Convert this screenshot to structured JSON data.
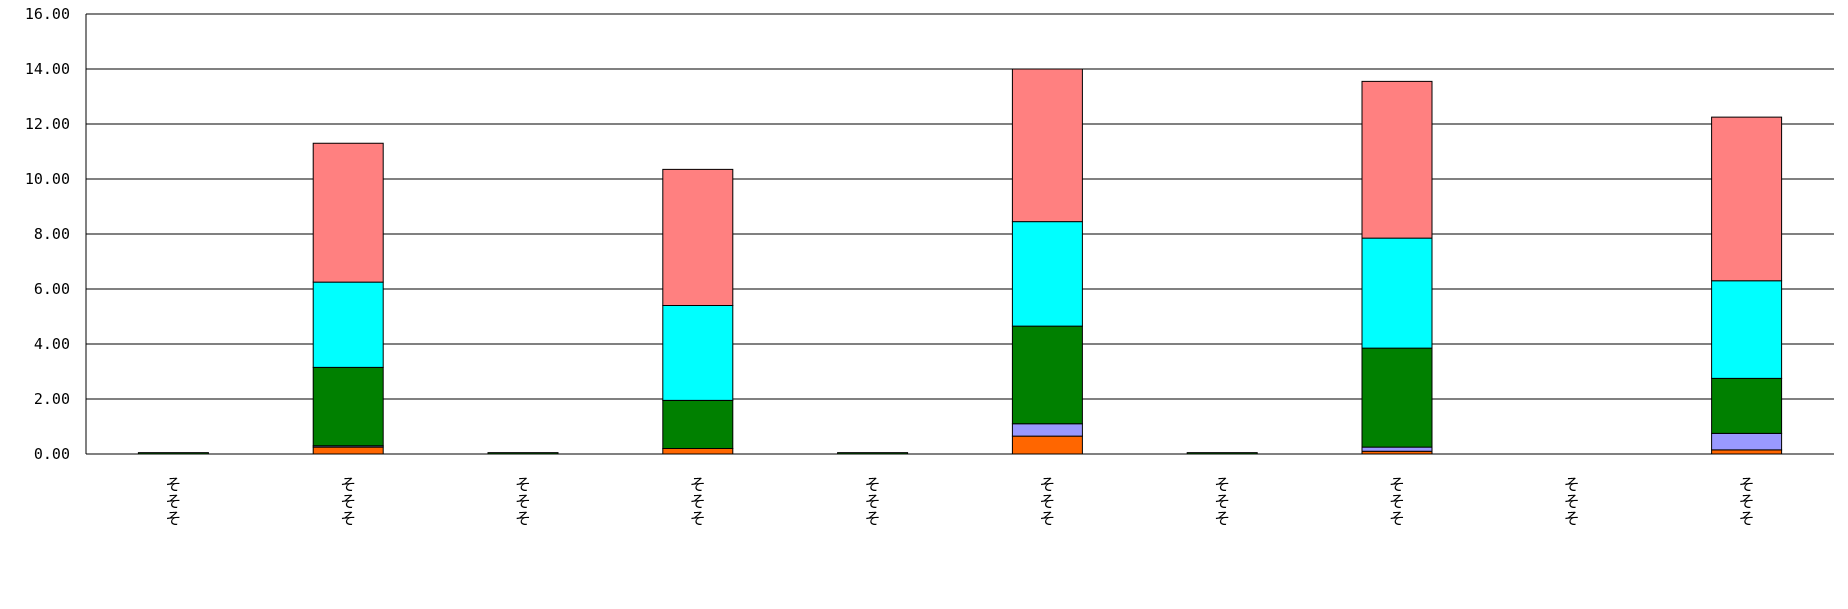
{
  "chart_data": {
    "type": "bar",
    "stacked": true,
    "title": "",
    "xlabel": "",
    "ylabel": "",
    "ylim": [
      0,
      16
    ],
    "yticks": [
      "0.00",
      "2.00",
      "4.00",
      "6.00",
      "8.00",
      "10.00",
      "12.00",
      "14.00",
      "16.00"
    ],
    "grid": true,
    "legend": "none",
    "categories": [
      "そそそ",
      "そそそ",
      "そそそ",
      "そそそ",
      "そそそ",
      "そそそ",
      "そそそ",
      "そそそ",
      "そそそ",
      "そそそ"
    ],
    "series": [
      {
        "color": "#ff6600",
        "values": [
          0,
          0.25,
          0,
          0.2,
          0,
          0.65,
          0,
          0.1,
          0,
          0.15
        ]
      },
      {
        "color": "#9999ff",
        "values": [
          0,
          0.05,
          0,
          0,
          0,
          0.45,
          0,
          0.15,
          0,
          0.6
        ]
      },
      {
        "color": "#008000",
        "values": [
          0.05,
          2.85,
          0.05,
          1.75,
          0.05,
          3.55,
          0.05,
          3.6,
          0,
          2.0
        ]
      },
      {
        "color": "#00ffff",
        "values": [
          0,
          3.1,
          0,
          3.45,
          0,
          3.8,
          0,
          4.0,
          0,
          3.55
        ]
      },
      {
        "color": "#ff8080",
        "values": [
          0,
          5.05,
          0,
          4.95,
          0,
          5.55,
          0,
          5.7,
          0,
          5.95
        ]
      }
    ]
  }
}
